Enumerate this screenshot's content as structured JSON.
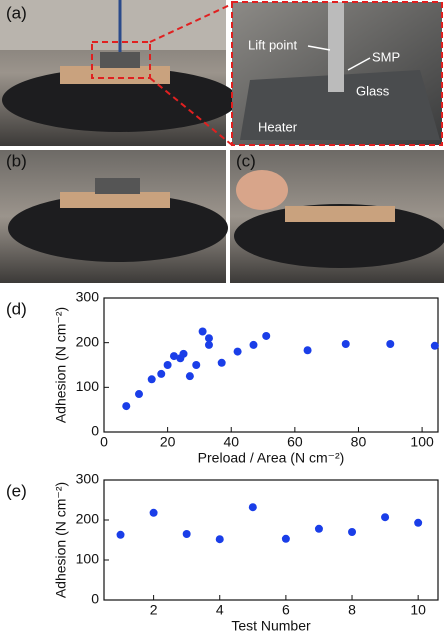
{
  "photos": {
    "a_label": "(a)",
    "b_label": "(b)",
    "c_label": "(c)",
    "annotations": [
      "Lift point",
      "SMP",
      "Glass",
      "Heater"
    ]
  },
  "chart_data": [
    {
      "type": "scatter",
      "panel_label": "(d)",
      "x_label": "Preload / Area (N cm⁻²)",
      "y_label": "Adhesion (N cm⁻²)",
      "color": "#1a3ee8",
      "x": [
        7,
        11,
        15,
        18,
        20,
        22,
        24,
        25,
        27,
        29,
        31,
        33,
        33,
        37,
        42,
        47,
        51,
        64,
        76,
        90,
        104
      ],
      "values": [
        58,
        85,
        118,
        130,
        150,
        170,
        165,
        175,
        125,
        150,
        225,
        210,
        195,
        155,
        180,
        195,
        215,
        183,
        197,
        197,
        193
      ],
      "xlim": [
        0,
        105
      ],
      "xticks": [
        0,
        20,
        40,
        60,
        80,
        100
      ],
      "ylim": [
        0,
        300
      ],
      "yticks": [
        0,
        100,
        200,
        300
      ]
    },
    {
      "type": "scatter",
      "panel_label": "(e)",
      "x_label": "Test Number",
      "y_label": "Adhesion (N cm⁻²)",
      "color": "#1a3ee8",
      "x": [
        1,
        2,
        3,
        4,
        5,
        6,
        7,
        8,
        9,
        10
      ],
      "values": [
        163,
        218,
        165,
        152,
        232,
        153,
        178,
        170,
        207,
        193
      ],
      "xlim": [
        0.5,
        10.6
      ],
      "xticks": [
        2,
        4,
        6,
        8,
        10
      ],
      "ylim": [
        0,
        300
      ],
      "yticks": [
        0,
        100,
        200,
        300
      ]
    }
  ]
}
